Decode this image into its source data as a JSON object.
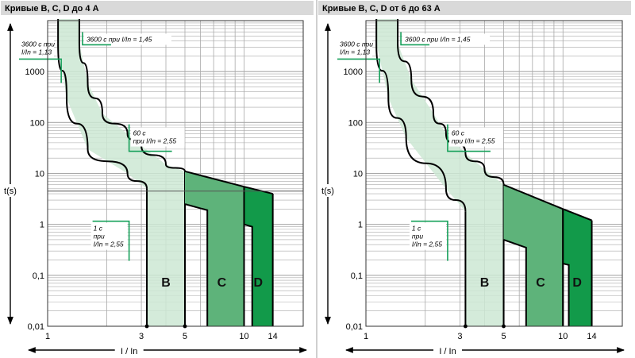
{
  "colors": {
    "panel_bg": "#d9d9d9",
    "grid": "#a9a9a9",
    "curve_B": "#cce8d4",
    "curve_C": "#5eb37a",
    "curve_D": "#129a4a",
    "callout": "#16a05a",
    "border": "#000000"
  },
  "chart_data": [
    {
      "type": "area",
      "title": "Кривые B, C, D до 4 А",
      "xlabel": "I / In",
      "ylabel": "t(s)",
      "x_scale": "log",
      "y_scale": "log",
      "xlim": [
        1,
        20
      ],
      "ylim": [
        0.01,
        10000
      ],
      "grid": true,
      "x_ticks": [
        {
          "v": 1,
          "label": "1"
        },
        {
          "v": 3,
          "label": "3"
        },
        {
          "v": 5,
          "label": "5"
        },
        {
          "v": 10,
          "label": "10"
        },
        {
          "v": 14,
          "label": "14"
        }
      ],
      "y_ticks": [
        {
          "v": 0.01,
          "label": "0,01"
        },
        {
          "v": 0.1,
          "label": "0,1"
        },
        {
          "v": 1,
          "label": "1"
        },
        {
          "v": 10,
          "label": "10"
        },
        {
          "v": 100,
          "label": "100"
        },
        {
          "v": 1000,
          "label": "1000"
        }
      ],
      "series": [
        {
          "name": "B",
          "hot": [
            [
              1.45,
              3600
            ],
            [
              1.6,
              600
            ],
            [
              1.9,
              150
            ],
            [
              2.55,
              60
            ],
            [
              3,
              35
            ],
            [
              4,
              15
            ],
            [
              5,
              11
            ]
          ],
          "cold": [
            [
              1.13,
              3600
            ],
            [
              1.25,
              300
            ],
            [
              1.6,
              30
            ],
            [
              2.55,
              10
            ],
            [
              3.2,
              5
            ]
          ],
          "vlines": [
            [
              3.2,
              5,
              0.01
            ],
            [
              5,
              11,
              0.01
            ]
          ],
          "fill_opacity": 0.85
        },
        {
          "name": "C",
          "band": [
            [
              5,
              11
            ],
            [
              10,
              5.5
            ]
          ],
          "vlines": [
            [
              5,
              2.5,
              0.01
            ],
            [
              10,
              5.5,
              0.01
            ]
          ],
          "inner": [
            [
              5,
              2.5
            ],
            [
              6.5,
              1.9
            ],
            [
              6.5,
              0.01
            ]
          ],
          "fill_opacity": 1
        },
        {
          "name": "D",
          "band": [
            [
              10,
              5.5
            ],
            [
              14,
              4
            ]
          ],
          "vlines": [
            [
              10,
              0.01,
              5.5
            ],
            [
              14,
              4,
              0.01
            ]
          ],
          "inner": [
            [
              10,
              1
            ],
            [
              11,
              0.9
            ],
            [
              11,
              0.01
            ]
          ],
          "fill_opacity": 1
        }
      ],
      "series_labels": [
        {
          "text": "B",
          "x": 4,
          "y": 0.06
        },
        {
          "text": "C",
          "x": 7.7,
          "y": 0.06
        },
        {
          "text": "D",
          "x": 11.8,
          "y": 0.06
        }
      ],
      "annotations": [
        {
          "text": [
            "3600 с при I/In = 1,45"
          ],
          "x": 1.45,
          "y": 3600
        },
        {
          "text": [
            "3600 с при",
            "I/In = 1,13"
          ],
          "x": 1.13,
          "y": 3600
        },
        {
          "text": [
            "60 с",
            "при I/In = 2,55"
          ],
          "x": 2.55,
          "y": 60
        },
        {
          "text": [
            "1 с",
            "при",
            "I/In = 2,55"
          ],
          "x": 2.55,
          "y": 1
        }
      ],
      "hline": 4.5
    },
    {
      "type": "area",
      "title": "Кривые B, C, D от 6 до 63 А",
      "xlabel": "I / In",
      "ylabel": "t(s)",
      "x_scale": "log",
      "y_scale": "log",
      "xlim": [
        1,
        20
      ],
      "ylim": [
        0.01,
        10000
      ],
      "grid": true,
      "x_ticks": [
        {
          "v": 1,
          "label": "1"
        },
        {
          "v": 3,
          "label": "3"
        },
        {
          "v": 5,
          "label": "5"
        },
        {
          "v": 10,
          "label": "10"
        },
        {
          "v": 14,
          "label": "14"
        }
      ],
      "y_ticks": [
        {
          "v": 0.01,
          "label": "0,01"
        },
        {
          "v": 0.1,
          "label": "0,1"
        },
        {
          "v": 1,
          "label": "1"
        },
        {
          "v": 10,
          "label": "10"
        },
        {
          "v": 100,
          "label": "100"
        },
        {
          "v": 1000,
          "label": "1000"
        }
      ],
      "series": [
        {
          "name": "B",
          "hot": [
            [
              1.45,
              3600
            ],
            [
              1.7,
              700
            ],
            [
              2.2,
              150
            ],
            [
              2.55,
              60
            ],
            [
              3.2,
              25
            ],
            [
              4,
              12
            ],
            [
              5,
              6
            ]
          ],
          "cold": [
            [
              1.13,
              3600
            ],
            [
              1.3,
              300
            ],
            [
              1.6,
              50
            ],
            [
              2.55,
              5
            ],
            [
              3.2,
              1.8
            ]
          ],
          "vlines": [
            [
              3.2,
              1.8,
              0.01
            ],
            [
              5,
              6,
              0.01
            ]
          ],
          "fill_opacity": 0.85
        },
        {
          "name": "C",
          "band": [
            [
              5,
              6
            ],
            [
              10,
              2
            ]
          ],
          "vlines": [
            [
              5,
              0.5,
              0.01
            ],
            [
              10,
              2,
              0.01
            ]
          ],
          "inner": [
            [
              5,
              0.5
            ],
            [
              6.5,
              0.35
            ],
            [
              6.5,
              0.01
            ]
          ],
          "fill_opacity": 1
        },
        {
          "name": "D",
          "band": [
            [
              10,
              2
            ],
            [
              14,
              1.2
            ]
          ],
          "vlines": [
            [
              10,
              0.01,
              2
            ],
            [
              14,
              1.2,
              0.01
            ]
          ],
          "inner": [
            [
              10,
              0.17
            ],
            [
              10.7,
              0.16
            ],
            [
              10.7,
              0.01
            ]
          ],
          "fill_opacity": 1
        }
      ],
      "series_labels": [
        {
          "text": "B",
          "x": 4,
          "y": 0.06
        },
        {
          "text": "C",
          "x": 7.7,
          "y": 0.06
        },
        {
          "text": "D",
          "x": 11.8,
          "y": 0.06
        }
      ],
      "annotations": [
        {
          "text": [
            "3600 с при I/In = 1,45"
          ],
          "x": 1.45,
          "y": 3600
        },
        {
          "text": [
            "3600 с при",
            "I/In = 1,13"
          ],
          "x": 1.13,
          "y": 3600
        },
        {
          "text": [
            "60 с",
            "при I/In = 2,55"
          ],
          "x": 2.55,
          "y": 60
        },
        {
          "text": [
            "1 с",
            "при",
            "I/In = 2,55"
          ],
          "x": 2.55,
          "y": 1
        }
      ]
    }
  ]
}
